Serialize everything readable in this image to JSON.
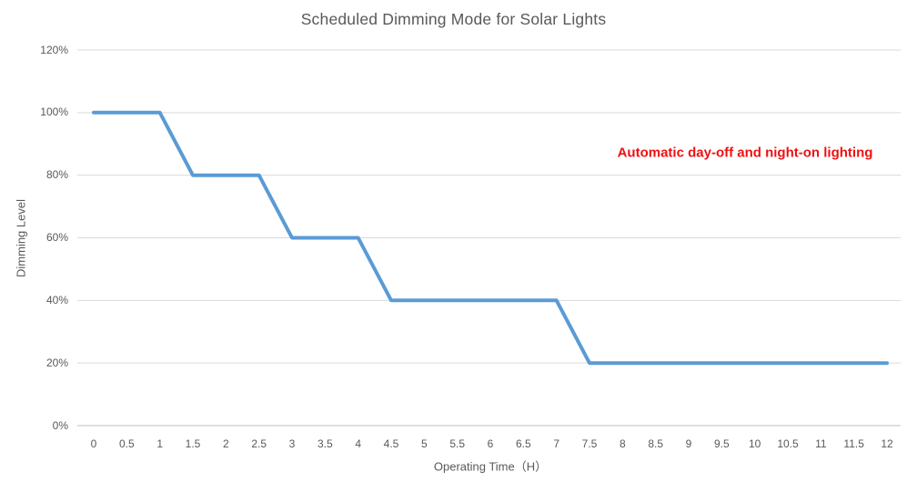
{
  "chart_data": {
    "type": "line",
    "title": "Scheduled Dimming Mode for Solar Lights",
    "xlabel": "Operating Time（H）",
    "ylabel": "Dimming Level",
    "xlim": [
      0,
      12
    ],
    "ylim": [
      0,
      120
    ],
    "x_ticks": [
      0,
      0.5,
      1,
      1.5,
      2,
      2.5,
      3,
      3.5,
      4,
      4.5,
      5,
      5.5,
      6,
      6.5,
      7,
      7.5,
      8,
      8.5,
      9,
      9.5,
      10,
      10.5,
      11,
      11.5,
      12
    ],
    "x_tick_labels": [
      "0",
      "0.5",
      "1",
      "1.5",
      "2",
      "2.5",
      "3",
      "3.5",
      "4",
      "4.5",
      "5",
      "5.5",
      "6",
      "6.5",
      "7",
      "7.5",
      "8",
      "8.5",
      "9",
      "9.5",
      "10",
      "10.5",
      "11",
      "11.5",
      "12"
    ],
    "y_ticks": [
      0,
      20,
      40,
      60,
      80,
      100,
      120
    ],
    "y_tick_labels": [
      "0%",
      "20%",
      "40%",
      "60%",
      "80%",
      "100%",
      "120%"
    ],
    "grid": "horizontal",
    "legend": "none",
    "series": [
      {
        "name": "Dimming Level",
        "color": "#5b9bd5",
        "points": [
          {
            "x": 0,
            "y": 100
          },
          {
            "x": 1,
            "y": 100
          },
          {
            "x": 1.5,
            "y": 80
          },
          {
            "x": 2.5,
            "y": 80
          },
          {
            "x": 3,
            "y": 60
          },
          {
            "x": 4,
            "y": 60
          },
          {
            "x": 4.5,
            "y": 40
          },
          {
            "x": 7,
            "y": 40
          },
          {
            "x": 7.5,
            "y": 20
          },
          {
            "x": 12,
            "y": 20
          }
        ]
      }
    ],
    "annotation": {
      "text": "Automatic day-off and night-on lighting",
      "color": "#ee1111"
    }
  },
  "colors": {
    "background": "#ffffff",
    "title": "#595959",
    "axis_title": "#595959",
    "tick_label": "#595959",
    "gridline": "#d9d9d9",
    "axis_line": "#bfbfbf"
  }
}
